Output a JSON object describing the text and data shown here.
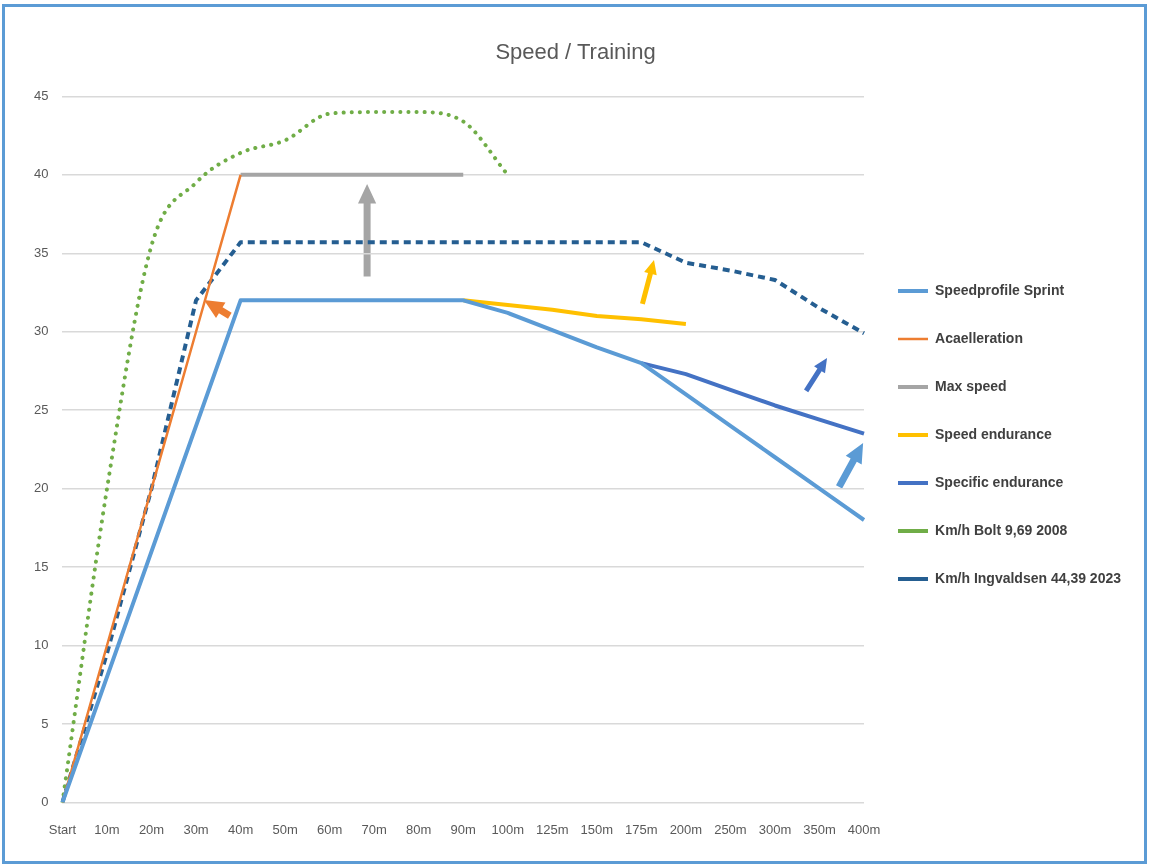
{
  "chart_data": {
    "type": "line",
    "title": "Speed / Training",
    "categories": [
      "Start",
      "10m",
      "20m",
      "30m",
      "40m",
      "50m",
      "60m",
      "70m",
      "80m",
      "90m",
      "100m",
      "125m",
      "150m",
      "175m",
      "200m",
      "250m",
      "300m",
      "350m",
      "400m"
    ],
    "series": [
      {
        "name": "Speedprofile Sprint",
        "color": "#5b9bd5",
        "line_style": "solid",
        "values": [
          0,
          8,
          16,
          24,
          32,
          32,
          32,
          32,
          32,
          32,
          31.2,
          30.1,
          29,
          28,
          26,
          24,
          22,
          20,
          18
        ]
      },
      {
        "name": "Acaelleration",
        "color": "#ed7d31",
        "line_style": "solid",
        "values": [
          0,
          10,
          20,
          30,
          40,
          null,
          null,
          null,
          null,
          null,
          null,
          null,
          null,
          null,
          null,
          null,
          null,
          null,
          null
        ]
      },
      {
        "name": "Max speed",
        "color": "#a5a5a5",
        "line_style": "solid",
        "values": [
          null,
          null,
          null,
          null,
          40,
          40,
          40,
          40,
          40,
          40,
          null,
          null,
          null,
          null,
          null,
          null,
          null,
          null,
          null
        ]
      },
      {
        "name": "Speed endurance",
        "color": "#ffc000",
        "line_style": "solid",
        "values": [
          null,
          null,
          null,
          null,
          null,
          null,
          null,
          null,
          null,
          32,
          31.7,
          31.4,
          31,
          30.8,
          30.5,
          null,
          null,
          null,
          null
        ]
      },
      {
        "name": "Specific endurance",
        "color": "#4472c4",
        "line_style": "solid",
        "values": [
          null,
          null,
          null,
          null,
          null,
          null,
          null,
          null,
          null,
          null,
          null,
          null,
          null,
          28,
          27.3,
          26.3,
          25.3,
          24.4,
          23.5
        ]
      },
      {
        "name": "Km/h Bolt 9,69 2008",
        "color": "#70ad47",
        "line_style": "dotted",
        "values": [
          0,
          20,
          35.5,
          39.5,
          41.4,
          42.2,
          43.9,
          44,
          44,
          43.4,
          40,
          null,
          null,
          null,
          null,
          null,
          null,
          null,
          null
        ]
      },
      {
        "name": "Km/h Ingvaldsen 44,39 2023",
        "color": "#255e91",
        "line_style": "dashed",
        "values": [
          0,
          9.5,
          20,
          32,
          35.7,
          35.7,
          35.7,
          35.7,
          35.7,
          35.7,
          35.7,
          35.7,
          35.7,
          35.7,
          34.4,
          33.9,
          33.3,
          31.5,
          29.9
        ]
      }
    ],
    "ylim": [
      0,
      45
    ],
    "yticks": [
      0,
      5,
      10,
      15,
      20,
      25,
      30,
      35,
      40,
      45
    ],
    "grid": "y",
    "legend": "right",
    "marker": "none"
  }
}
